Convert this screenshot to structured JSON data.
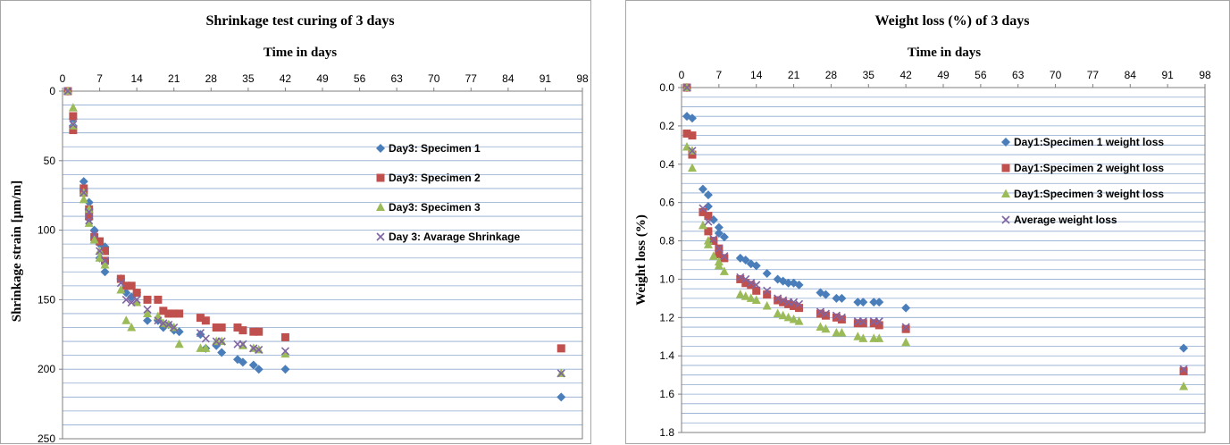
{
  "chart_data": [
    {
      "type": "scatter",
      "title": "Shrinkage test curing of 3 days",
      "xlabel": "Time in days",
      "ylabel": "Shrinkage strain [μm/m]",
      "xlim": [
        0,
        98
      ],
      "ylim": [
        0,
        250
      ],
      "y_inverted": true,
      "x_ticks": [
        0,
        7,
        14,
        21,
        28,
        35,
        42,
        49,
        56,
        63,
        70,
        77,
        84,
        91,
        98
      ],
      "y_ticks": [
        0,
        50,
        100,
        150,
        200,
        250
      ],
      "x_axis_position": "top",
      "grid": true,
      "legend_position": "right",
      "series": [
        {
          "name": "Day3: Specimen 1",
          "marker": "diamond",
          "color": "#4a7ebb",
          "x": [
            1,
            2,
            2,
            4,
            4,
            5,
            5,
            5,
            6,
            7,
            7,
            8,
            8,
            11,
            12,
            13,
            14,
            16,
            18,
            19,
            20,
            21,
            22,
            26,
            27,
            29,
            30,
            33,
            34,
            36,
            37,
            42,
            94
          ],
          "y": [
            0,
            20,
            25,
            65,
            70,
            80,
            85,
            92,
            100,
            110,
            120,
            112,
            130,
            135,
            145,
            148,
            145,
            165,
            165,
            170,
            168,
            172,
            173,
            175,
            185,
            183,
            188,
            193,
            195,
            197,
            200,
            200,
            220
          ]
        },
        {
          "name": "Day3: Specimen 2",
          "marker": "square",
          "color": "#c0504d",
          "x": [
            1,
            2,
            2,
            4,
            4,
            5,
            5,
            6,
            7,
            8,
            8,
            11,
            12,
            13,
            14,
            16,
            18,
            19,
            20,
            21,
            22,
            26,
            27,
            29,
            30,
            33,
            34,
            36,
            37,
            42,
            94
          ],
          "y": [
            0,
            18,
            28,
            70,
            73,
            85,
            90,
            105,
            108,
            115,
            122,
            135,
            140,
            140,
            145,
            150,
            150,
            158,
            160,
            160,
            160,
            163,
            165,
            170,
            170,
            170,
            172,
            173,
            173,
            177,
            185
          ]
        },
        {
          "name": "Day3: Specimen 3",
          "marker": "triangle",
          "color": "#9bbb59",
          "x": [
            1,
            2,
            2,
            4,
            4,
            5,
            5,
            6,
            7,
            7,
            8,
            11,
            12,
            13,
            14,
            16,
            18,
            19,
            20,
            21,
            22,
            26,
            27,
            29,
            30,
            34,
            36,
            37,
            42,
            94
          ],
          "y": [
            0,
            12,
            25,
            73,
            78,
            85,
            95,
            107,
            115,
            120,
            125,
            143,
            165,
            170,
            152,
            160,
            162,
            167,
            168,
            170,
            182,
            185,
            185,
            180,
            180,
            183,
            185,
            186,
            189,
            203
          ]
        },
        {
          "name": "Day 3: Avarage Shrinkage",
          "marker": "x",
          "color": "#8064a2",
          "x": [
            1,
            2,
            4,
            5,
            5,
            6,
            7,
            8,
            11,
            12,
            13,
            14,
            16,
            18,
            19,
            20,
            21,
            26,
            27,
            29,
            30,
            33,
            34,
            36,
            37,
            42,
            94
          ],
          "y": [
            0,
            24,
            73,
            87,
            93,
            103,
            115,
            122,
            138,
            150,
            152,
            150,
            157,
            165,
            167,
            168,
            170,
            174,
            178,
            180,
            180,
            182,
            182,
            185,
            186,
            187,
            203
          ]
        }
      ]
    },
    {
      "type": "scatter",
      "title": "Weight loss (%) of 3 days",
      "xlabel": "Time in days",
      "ylabel": "Weight loss (%)",
      "xlim": [
        0,
        98
      ],
      "ylim": [
        0,
        1.8
      ],
      "y_inverted": true,
      "x_ticks": [
        0,
        7,
        14,
        21,
        28,
        35,
        42,
        49,
        56,
        63,
        70,
        77,
        84,
        91,
        98
      ],
      "y_ticks": [
        "0.0",
        "0.2",
        "0.4",
        "0.6",
        "0.8",
        "1.0",
        "1.2",
        "1.4",
        "1.6",
        "1.8"
      ],
      "x_axis_position": "top",
      "grid": true,
      "legend_position": "right",
      "series": [
        {
          "name": "Day1:Specimen 1 weight loss",
          "marker": "diamond",
          "color": "#4a7ebb",
          "x": [
            1,
            1,
            2,
            4,
            5,
            5,
            6,
            7,
            7,
            8,
            11,
            12,
            13,
            14,
            16,
            18,
            19,
            20,
            21,
            22,
            26,
            27,
            29,
            30,
            33,
            34,
            36,
            37,
            42,
            94
          ],
          "y": [
            0,
            0.15,
            0.16,
            0.53,
            0.56,
            0.62,
            0.69,
            0.73,
            0.76,
            0.78,
            0.89,
            0.9,
            0.92,
            0.93,
            0.97,
            1.0,
            1.01,
            1.02,
            1.02,
            1.03,
            1.07,
            1.08,
            1.1,
            1.1,
            1.12,
            1.12,
            1.12,
            1.12,
            1.15,
            1.36
          ]
        },
        {
          "name": "Day1:Specimen 2 weight loss",
          "marker": "square",
          "color": "#c0504d",
          "x": [
            1,
            1,
            2,
            2,
            4,
            5,
            5,
            6,
            7,
            7,
            8,
            11,
            12,
            13,
            14,
            16,
            18,
            19,
            20,
            21,
            22,
            26,
            27,
            29,
            30,
            33,
            34,
            36,
            37,
            42,
            94
          ],
          "y": [
            0,
            0.24,
            0.25,
            0.35,
            0.65,
            0.67,
            0.75,
            0.8,
            0.84,
            0.87,
            0.89,
            1.0,
            1.02,
            1.03,
            1.06,
            1.08,
            1.11,
            1.12,
            1.13,
            1.14,
            1.15,
            1.18,
            1.19,
            1.2,
            1.21,
            1.23,
            1.23,
            1.23,
            1.24,
            1.26,
            1.48
          ]
        },
        {
          "name": "Day1:Specimen 3 weight loss",
          "marker": "triangle",
          "color": "#9bbb59",
          "x": [
            1,
            1,
            2,
            2,
            4,
            5,
            5,
            6,
            7,
            7,
            8,
            11,
            12,
            13,
            14,
            16,
            18,
            19,
            20,
            21,
            22,
            26,
            27,
            29,
            30,
            33,
            34,
            36,
            37,
            42,
            94
          ],
          "y": [
            0,
            0.31,
            0.33,
            0.42,
            0.72,
            0.8,
            0.82,
            0.88,
            0.91,
            0.93,
            0.96,
            1.08,
            1.09,
            1.1,
            1.11,
            1.14,
            1.18,
            1.19,
            1.2,
            1.21,
            1.22,
            1.25,
            1.26,
            1.28,
            1.28,
            1.3,
            1.31,
            1.31,
            1.31,
            1.33,
            1.56
          ]
        },
        {
          "name": "Average weight loss",
          "marker": "x",
          "color": "#8064a2",
          "x": [
            1,
            2,
            4,
            5,
            6,
            7,
            8,
            11,
            12,
            13,
            14,
            16,
            18,
            19,
            20,
            21,
            22,
            26,
            27,
            29,
            30,
            33,
            34,
            36,
            37,
            42,
            94
          ],
          "y": [
            0,
            0.33,
            0.63,
            0.7,
            0.79,
            0.84,
            0.88,
            0.99,
            1.0,
            1.02,
            1.03,
            1.06,
            1.1,
            1.11,
            1.12,
            1.12,
            1.13,
            1.17,
            1.18,
            1.19,
            1.2,
            1.22,
            1.22,
            1.22,
            1.22,
            1.25,
            1.47
          ]
        }
      ]
    }
  ]
}
